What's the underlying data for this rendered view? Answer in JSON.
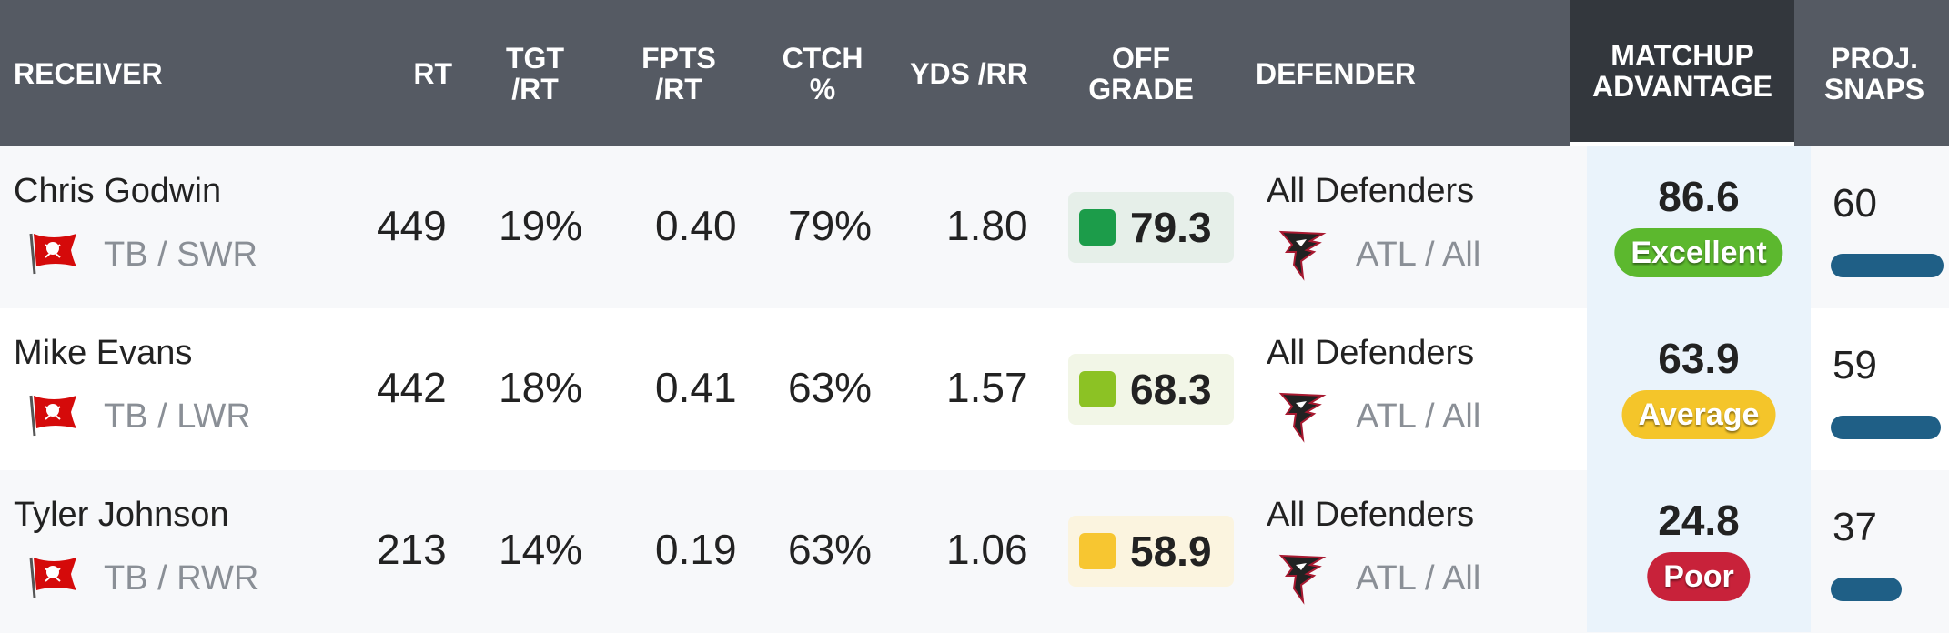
{
  "columns": {
    "receiver": "RECEIVER",
    "rt": "RT",
    "tgt_rt": "TGT\n/RT",
    "fpts_rt": "FPTS\n/RT",
    "ctch": "CTCH\n%",
    "yds_rr": "YDS /RR",
    "off_grade": "OFF\nGRADE",
    "defender": "DEFENDER",
    "matchup": "MATCHUP\nADVANTAGE",
    "proj_snaps": "PROJ.\nSNAPS"
  },
  "colors": {
    "header_bg": "#555a63",
    "matchup_header_bg": "#33373d",
    "excellent": "#5cb82e",
    "average": "#f4c52a",
    "poor": "#c8223a",
    "snap_bar": "#1f5f86"
  },
  "rows": [
    {
      "name": "Chris Godwin",
      "team_pos": "TB / SWR",
      "team_icon": "buccaneers-flag-icon",
      "rt": "449",
      "tgt_rt": "19%",
      "fpts_rt": "0.40",
      "ctch": "79%",
      "yds_rr": "1.80",
      "off_grade": "79.3",
      "grade_color": "#1c9c4a",
      "grade_bg": "#e6efe9",
      "defender": "All Defenders",
      "def_team": "ATL / All",
      "def_icon": "falcons-logo-icon",
      "matchup": "86.6",
      "matchup_label": "Excellent",
      "matchup_color": "#5cb82e",
      "proj_snaps": "60",
      "snap_fraction": 0.95
    },
    {
      "name": "Mike Evans",
      "team_pos": "TB / LWR",
      "team_icon": "buccaneers-flag-icon",
      "rt": "442",
      "tgt_rt": "18%",
      "fpts_rt": "0.41",
      "ctch": "63%",
      "yds_rr": "1.57",
      "off_grade": "68.3",
      "grade_color": "#8cc224",
      "grade_bg": "#f2f6e7",
      "defender": "All Defenders",
      "def_team": "ATL / All",
      "def_icon": "falcons-logo-icon",
      "matchup": "63.9",
      "matchup_label": "Average",
      "matchup_color": "#f4c52a",
      "proj_snaps": "59",
      "snap_fraction": 0.93
    },
    {
      "name": "Tyler Johnson",
      "team_pos": "TB / RWR",
      "team_icon": "buccaneers-flag-icon",
      "rt": "213",
      "tgt_rt": "14%",
      "fpts_rt": "0.19",
      "ctch": "63%",
      "yds_rr": "1.06",
      "off_grade": "58.9",
      "grade_color": "#f7c631",
      "grade_bg": "#fbf4df",
      "defender": "All Defenders",
      "def_team": "ATL / All",
      "def_icon": "falcons-logo-icon",
      "matchup": "24.8",
      "matchup_label": "Poor",
      "matchup_color": "#c8223a",
      "proj_snaps": "37",
      "snap_fraction": 0.6
    }
  ]
}
